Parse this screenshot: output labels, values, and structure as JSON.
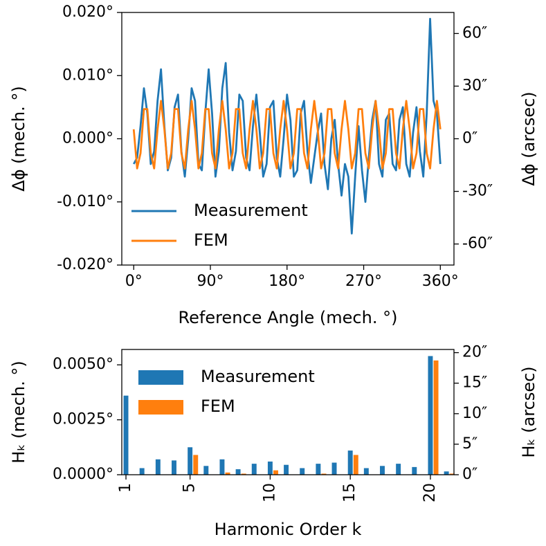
{
  "chart_data": [
    {
      "type": "line",
      "x_label": "Reference Angle (mech. °)",
      "y_label": "Δϕ (mech. °)",
      "y2_label": "Δϕ (arcsec)",
      "x": [
        0,
        4,
        8,
        12,
        16,
        20,
        24,
        28,
        32,
        36,
        40,
        44,
        48,
        52,
        56,
        60,
        64,
        68,
        72,
        76,
        80,
        84,
        88,
        92,
        96,
        100,
        104,
        108,
        112,
        116,
        120,
        124,
        128,
        132,
        136,
        140,
        144,
        148,
        152,
        156,
        160,
        164,
        168,
        172,
        176,
        180,
        184,
        188,
        192,
        196,
        200,
        204,
        208,
        212,
        216,
        220,
        224,
        228,
        232,
        236,
        240,
        244,
        248,
        252,
        256,
        260,
        264,
        268,
        272,
        276,
        280,
        284,
        288,
        292,
        296,
        300,
        304,
        308,
        312,
        316,
        320,
        324,
        328,
        332,
        336,
        340,
        344,
        348,
        352,
        356,
        360
      ],
      "series": [
        {
          "name": "Measurement",
          "color": "#1f77b4",
          "values": [
            -0.004,
            -0.003,
            0.002,
            0.008,
            0.004,
            -0.004,
            -0.002,
            0.006,
            0.011,
            0.002,
            -0.005,
            -0.003,
            0.005,
            0.007,
            -0.002,
            -0.006,
            0.0,
            0.008,
            0.006,
            -0.004,
            -0.005,
            0.004,
            0.011,
            0.004,
            -0.006,
            -0.002,
            0.008,
            0.012,
            0.001,
            -0.005,
            -0.002,
            0.007,
            0.006,
            -0.003,
            -0.005,
            0.002,
            0.007,
            0.001,
            -0.006,
            -0.004,
            0.005,
            0.006,
            -0.003,
            -0.006,
            0.0,
            0.007,
            0.003,
            -0.006,
            -0.005,
            0.004,
            0.006,
            -0.002,
            -0.007,
            -0.003,
            0.001,
            0.004,
            -0.004,
            -0.008,
            0.0,
            0.003,
            -0.004,
            -0.009,
            -0.004,
            -0.006,
            -0.015,
            -0.006,
            0.002,
            -0.005,
            -0.01,
            -0.003,
            0.003,
            0.006,
            -0.004,
            -0.006,
            0.003,
            0.004,
            -0.004,
            -0.005,
            0.003,
            0.005,
            -0.004,
            -0.006,
            0.001,
            0.005,
            -0.002,
            -0.006,
            0.004,
            0.019,
            0.006,
            0.004,
            -0.004
          ]
        },
        {
          "name": "FEM",
          "color": "#ff7f0e",
          "values": [
            0.0015,
            -0.0047,
            -0.0023,
            0.0047,
            0.0047,
            -0.0023,
            -0.0047,
            0.0015,
            0.006,
            0.0015,
            -0.0047,
            -0.0023,
            0.0047,
            0.0047,
            -0.0023,
            -0.0047,
            0.0015,
            0.006,
            0.0015,
            -0.0047,
            -0.0023,
            0.0047,
            0.0047,
            -0.0023,
            -0.0047,
            0.0015,
            0.006,
            0.0015,
            -0.0047,
            -0.0023,
            0.0047,
            0.0047,
            -0.0023,
            -0.0047,
            0.0015,
            0.006,
            0.0015,
            -0.0047,
            -0.0023,
            0.0047,
            0.0047,
            -0.0023,
            -0.0047,
            0.0015,
            0.006,
            0.0015,
            -0.0047,
            -0.0023,
            0.0047,
            0.0047,
            -0.0023,
            -0.0047,
            0.0015,
            0.006,
            0.0015,
            -0.0047,
            -0.0023,
            0.0047,
            0.0047,
            -0.0023,
            -0.0047,
            0.0015,
            0.006,
            0.0015,
            -0.0047,
            -0.0023,
            0.0047,
            0.0047,
            -0.0023,
            -0.0047,
            0.0015,
            0.006,
            0.0015,
            -0.0047,
            -0.0023,
            0.0047,
            0.0047,
            -0.0023,
            -0.0047,
            0.0015,
            0.006,
            0.0015,
            -0.0047,
            -0.0023,
            0.0047,
            0.0047,
            -0.0023,
            -0.0047,
            0.0015,
            0.006,
            0.0015
          ]
        }
      ],
      "xlim": [
        -14,
        376
      ],
      "xticks": [
        {
          "value": 0,
          "label": "0°"
        },
        {
          "value": 90,
          "label": "90°"
        },
        {
          "value": 180,
          "label": "180°"
        },
        {
          "value": 270,
          "label": "270°"
        },
        {
          "value": 360,
          "label": "360°"
        }
      ],
      "ylim": [
        -0.02,
        0.02
      ],
      "yticks": [
        {
          "value": -0.02,
          "label": "-0.020°"
        },
        {
          "value": -0.01,
          "label": "-0.010°"
        },
        {
          "value": 0,
          "label": "0.000°"
        },
        {
          "value": 0.01,
          "label": "0.010°"
        },
        {
          "value": 0.02,
          "label": "0.020°"
        }
      ],
      "y2lim": [
        -72,
        72
      ],
      "y2ticks": [
        {
          "value": -60,
          "label": "-60″"
        },
        {
          "value": -30,
          "label": "-30″"
        },
        {
          "value": 0,
          "label": "0″"
        },
        {
          "value": 30,
          "label": "30″"
        },
        {
          "value": 60,
          "label": "60″"
        }
      ],
      "legend": "lower left"
    },
    {
      "type": "bar",
      "x_label": "Harmonic Order k",
      "y_label": "Hₖ (mech. °)",
      "y2_label": "Hₖ (arcsec)",
      "x": [
        1,
        2,
        3,
        4,
        5,
        6,
        7,
        8,
        9,
        10,
        11,
        12,
        13,
        14,
        15,
        16,
        17,
        18,
        19,
        20,
        21
      ],
      "series": [
        {
          "name": "Measurement",
          "color": "#1f77b4",
          "values": [
            0.0036,
            0.0003,
            0.0007,
            0.00065,
            0.00125,
            0.0004,
            0.0007,
            0.00025,
            0.0005,
            0.0006,
            0.00045,
            0.0003,
            0.0005,
            0.00055,
            0.0011,
            0.0003,
            0.0004,
            0.0005,
            0.00035,
            0.0054,
            0.00015
          ]
        },
        {
          "name": "FEM",
          "color": "#ff7f0e",
          "values": [
            0,
            0,
            0,
            0,
            0.0009,
            0,
            0.0001,
            5e-05,
            0,
            0.0002,
            0,
            0,
            5e-05,
            0,
            0.0009,
            0,
            0,
            0,
            0,
            0.0052,
            5e-05
          ]
        }
      ],
      "xlim": [
        0.74,
        21.47
      ],
      "xticks": [
        1,
        5,
        10,
        15,
        20
      ],
      "ylim": [
        0,
        0.0057
      ],
      "yticks": [
        {
          "value": 0,
          "label": "0.0000°"
        },
        {
          "value": 0.0025,
          "label": "0.0025°"
        },
        {
          "value": 0.005,
          "label": "0.0050°"
        }
      ],
      "y2lim": [
        0,
        20.52
      ],
      "y2ticks": [
        {
          "value": 0,
          "label": "0″"
        },
        {
          "value": 5,
          "label": "5″"
        },
        {
          "value": 10,
          "label": "10″"
        },
        {
          "value": 15,
          "label": "15″"
        },
        {
          "value": 20,
          "label": "20″"
        }
      ],
      "legend": "upper left"
    }
  ]
}
